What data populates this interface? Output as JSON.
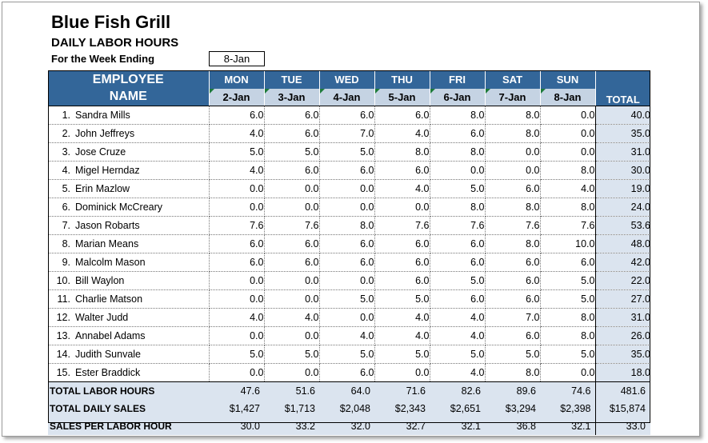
{
  "title": "Blue Fish Grill",
  "subtitle": "DAILY LABOR HOURS",
  "week_label": "For the Week Ending",
  "week_ending": "8-Jan",
  "header": {
    "employee_line1": "EMPLOYEE",
    "employee_line2": "NAME",
    "total": "TOTAL",
    "days": [
      "MON",
      "TUE",
      "WED",
      "THU",
      "FRI",
      "SAT",
      "SUN"
    ],
    "dates": [
      "2-Jan",
      "3-Jan",
      "4-Jan",
      "5-Jan",
      "6-Jan",
      "7-Jan",
      "8-Jan"
    ]
  },
  "employees": [
    {
      "num": "1.",
      "name": "Sandra Mills",
      "hours": [
        "6.0",
        "6.0",
        "6.0",
        "6.0",
        "8.0",
        "8.0",
        "0.0"
      ],
      "total": "40.0"
    },
    {
      "num": "2.",
      "name": "John Jeffreys",
      "hours": [
        "4.0",
        "6.0",
        "7.0",
        "4.0",
        "6.0",
        "8.0",
        "0.0"
      ],
      "total": "35.0"
    },
    {
      "num": "3.",
      "name": "Jose Cruze",
      "hours": [
        "5.0",
        "5.0",
        "5.0",
        "8.0",
        "8.0",
        "0.0",
        "0.0"
      ],
      "total": "31.0"
    },
    {
      "num": "4.",
      "name": "Migel Herndaz",
      "hours": [
        "4.0",
        "6.0",
        "6.0",
        "6.0",
        "0.0",
        "0.0",
        "8.0"
      ],
      "total": "30.0"
    },
    {
      "num": "5.",
      "name": "Erin Mazlow",
      "hours": [
        "0.0",
        "0.0",
        "0.0",
        "4.0",
        "5.0",
        "6.0",
        "4.0"
      ],
      "total": "19.0"
    },
    {
      "num": "6.",
      "name": "Dominick McCreary",
      "hours": [
        "0.0",
        "0.0",
        "0.0",
        "0.0",
        "8.0",
        "8.0",
        "8.0"
      ],
      "total": "24.0"
    },
    {
      "num": "7.",
      "name": "Jason Robarts",
      "hours": [
        "7.6",
        "7.6",
        "8.0",
        "7.6",
        "7.6",
        "7.6",
        "7.6"
      ],
      "total": "53.6"
    },
    {
      "num": "8.",
      "name": "Marian Means",
      "hours": [
        "6.0",
        "6.0",
        "6.0",
        "6.0",
        "6.0",
        "8.0",
        "10.0"
      ],
      "total": "48.0"
    },
    {
      "num": "9.",
      "name": "Malcolm Mason",
      "hours": [
        "6.0",
        "6.0",
        "6.0",
        "6.0",
        "6.0",
        "6.0",
        "6.0"
      ],
      "total": "42.0"
    },
    {
      "num": "10.",
      "name": "Bill Waylon",
      "hours": [
        "0.0",
        "0.0",
        "0.0",
        "6.0",
        "5.0",
        "6.0",
        "5.0"
      ],
      "total": "22.0"
    },
    {
      "num": "11.",
      "name": "Charlie Matson",
      "hours": [
        "0.0",
        "0.0",
        "5.0",
        "5.0",
        "6.0",
        "6.0",
        "5.0"
      ],
      "total": "27.0"
    },
    {
      "num": "12.",
      "name": "Walter Judd",
      "hours": [
        "4.0",
        "4.0",
        "0.0",
        "4.0",
        "4.0",
        "7.0",
        "8.0"
      ],
      "total": "31.0"
    },
    {
      "num": "13.",
      "name": "Annabel Adams",
      "hours": [
        "0.0",
        "0.0",
        "4.0",
        "4.0",
        "4.0",
        "6.0",
        "8.0"
      ],
      "total": "26.0"
    },
    {
      "num": "14.",
      "name": "Judith Sunvale",
      "hours": [
        "5.0",
        "5.0",
        "5.0",
        "5.0",
        "5.0",
        "5.0",
        "5.0"
      ],
      "total": "35.0"
    },
    {
      "num": "15.",
      "name": "Ester Braddick",
      "hours": [
        "0.0",
        "0.0",
        "6.0",
        "0.0",
        "4.0",
        "8.0",
        "0.0"
      ],
      "total": "18.0"
    }
  ],
  "summary": [
    {
      "label": "TOTAL LABOR HOURS",
      "values": [
        "47.6",
        "51.6",
        "64.0",
        "71.6",
        "82.6",
        "89.6",
        "74.6"
      ],
      "total": "481.6"
    },
    {
      "label": "TOTAL DAILY SALES",
      "values": [
        "$1,427",
        "$1,713",
        "$2,048",
        "$2,343",
        "$2,651",
        "$3,294",
        "$2,398"
      ],
      "total": "$15,874"
    },
    {
      "label": "SALES PER LABOR HOUR",
      "values": [
        "30.0",
        "33.2",
        "32.0",
        "32.7",
        "32.1",
        "36.8",
        "32.1"
      ],
      "total": "33.0"
    }
  ]
}
